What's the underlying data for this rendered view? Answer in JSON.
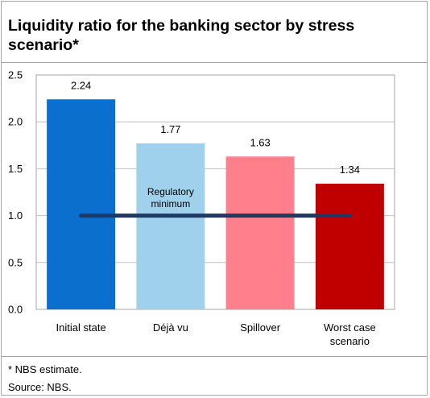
{
  "title": "Liquidity ratio for the banking sector by stress scenario*",
  "footnote": "* NBS estimate.",
  "source": "Source: NBS.",
  "chart_data": {
    "type": "bar",
    "categories": [
      "Initial state",
      "Déjà vu",
      "Spillover",
      "Worst case scenario"
    ],
    "category_lines": [
      [
        "Initial state"
      ],
      [
        "Déjà vu"
      ],
      [
        "Spillover"
      ],
      [
        "Worst case",
        "scenario"
      ]
    ],
    "values": [
      2.24,
      1.77,
      1.63,
      1.34
    ],
    "data_labels": [
      "2.24",
      "1.77",
      "1.63",
      "1.34"
    ],
    "bar_colors": [
      "#0a6fcd",
      "#9fd0ec",
      "#ff808c",
      "#c00000"
    ],
    "ylim": [
      0,
      2.5
    ],
    "yticks": [
      "0.0",
      "0.5",
      "1.0",
      "1.5",
      "2.0",
      "2.5"
    ],
    "ytick_values": [
      0,
      0.5,
      1.0,
      1.5,
      2.0,
      2.5
    ],
    "grid": true,
    "reference_line": {
      "value": 1.0,
      "label_lines": [
        "Regulatory",
        "minimum"
      ],
      "color": "#1f3864"
    }
  }
}
